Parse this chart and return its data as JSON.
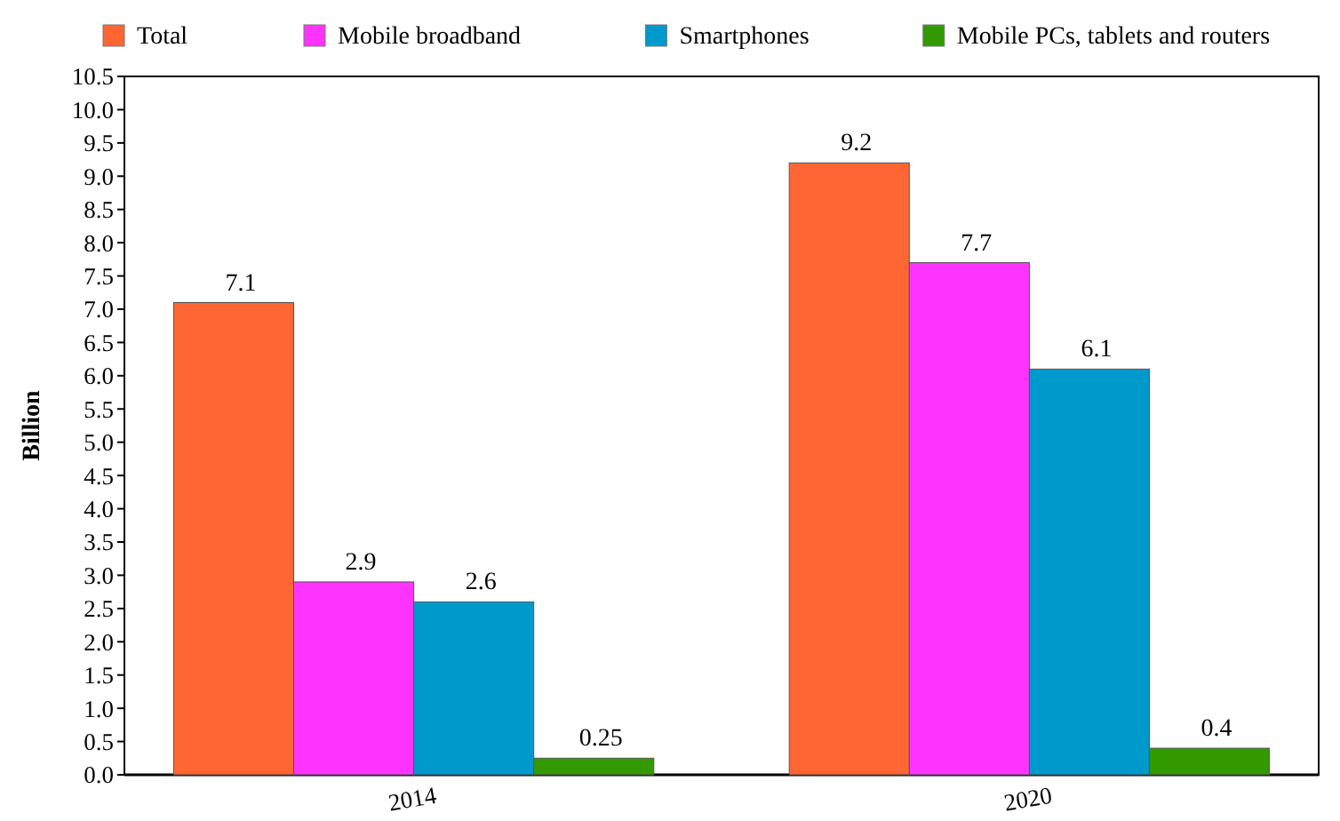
{
  "chart_data": {
    "type": "bar",
    "ylabel": "Billion",
    "categories": [
      "2014",
      "2020"
    ],
    "series": [
      {
        "name": "Total",
        "color": "#ff6633",
        "values": [
          7.1,
          9.2
        ]
      },
      {
        "name": "Mobile broadband",
        "color": "#ff33ff",
        "values": [
          2.9,
          7.7
        ]
      },
      {
        "name": "Smartphones",
        "color": "#0099cc",
        "values": [
          2.6,
          6.1
        ]
      },
      {
        "name": "Mobile PCs, tablets and routers",
        "color": "#339900",
        "values": [
          0.25,
          0.4
        ]
      }
    ],
    "ylim": [
      0,
      10.5
    ],
    "yticks": [
      {
        "value": 0,
        "label": "0.0"
      },
      0.5,
      {
        "value": 1,
        "label": "1.0"
      },
      1.5,
      {
        "value": 2,
        "label": "2.0"
      },
      2.5,
      {
        "value": 3,
        "label": "3.0"
      },
      3.5,
      {
        "value": 4,
        "label": "4.0"
      },
      4.5,
      {
        "value": 5,
        "label": "5.0"
      },
      5.5,
      {
        "value": 6,
        "label": "6.0"
      },
      6.5,
      {
        "value": 7,
        "label": "7.0"
      },
      7.5,
      {
        "value": 8,
        "label": "8.0"
      },
      8.5,
      {
        "value": 9,
        "label": "9.0"
      },
      9.5,
      {
        "value": 10,
        "label": "10.0"
      },
      10.5
    ],
    "data_labels": true,
    "grid": false,
    "legend": "top"
  }
}
